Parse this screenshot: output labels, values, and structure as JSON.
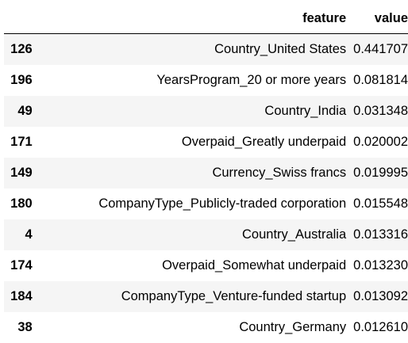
{
  "table": {
    "columns": {
      "index": "",
      "feature": "feature",
      "value": "value"
    },
    "rows": [
      {
        "index": "126",
        "feature": "Country_United States",
        "value": "0.441707"
      },
      {
        "index": "196",
        "feature": "YearsProgram_20 or more years",
        "value": "0.081814"
      },
      {
        "index": "49",
        "feature": "Country_India",
        "value": "0.031348"
      },
      {
        "index": "171",
        "feature": "Overpaid_Greatly underpaid",
        "value": "0.020002"
      },
      {
        "index": "149",
        "feature": "Currency_Swiss francs",
        "value": "0.019995"
      },
      {
        "index": "180",
        "feature": "CompanyType_Publicly-traded corporation",
        "value": "0.015548"
      },
      {
        "index": "4",
        "feature": "Country_Australia",
        "value": "0.013316"
      },
      {
        "index": "174",
        "feature": "Overpaid_Somewhat underpaid",
        "value": "0.013230"
      },
      {
        "index": "184",
        "feature": "CompanyType_Venture-funded startup",
        "value": "0.013092"
      },
      {
        "index": "38",
        "feature": "Country_Germany",
        "value": "0.012610"
      }
    ]
  },
  "colors": {
    "stripe": "#f5f5f5",
    "header_rule": "#000000",
    "text": "#000000"
  }
}
